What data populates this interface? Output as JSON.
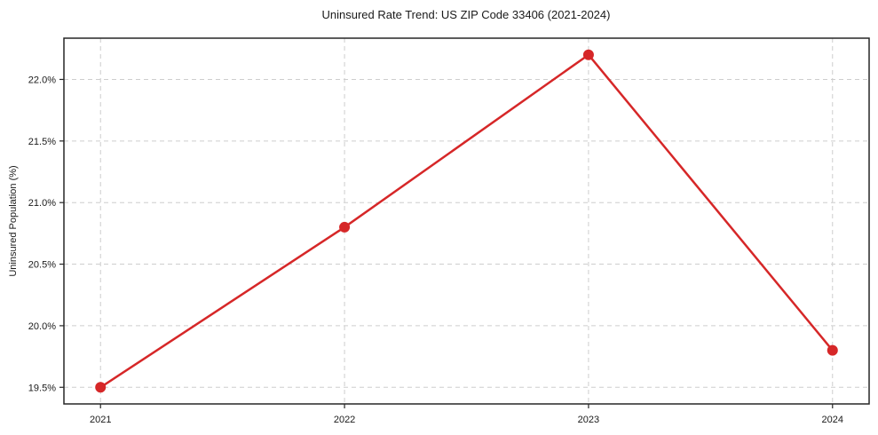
{
  "chart_data": {
    "type": "line",
    "title": "Uninsured Rate Trend: US ZIP Code 33406 (2021-2024)",
    "xlabel": "",
    "ylabel": "Uninsured Population (%)",
    "x": [
      2021,
      2022,
      2023,
      2024
    ],
    "values": [
      19.5,
      20.8,
      22.2,
      19.8
    ],
    "xtick_labels": [
      "2021",
      "2022",
      "2023",
      "2024"
    ],
    "yticks": [
      19.5,
      20.0,
      20.5,
      21.0,
      21.5,
      22.0
    ],
    "ytick_labels": [
      "19.5%",
      "20.0%",
      "20.5%",
      "21.0%",
      "21.5%",
      "22.0%"
    ],
    "xlim": [
      2020.85,
      2024.15
    ],
    "ylim": [
      19.365,
      22.335
    ],
    "grid": true,
    "legend": "none",
    "line_color": "#d62728",
    "marker": "circle",
    "grid_color": "#cdcdcd",
    "spine_color": "#262626",
    "background_color": "#ffffff"
  }
}
